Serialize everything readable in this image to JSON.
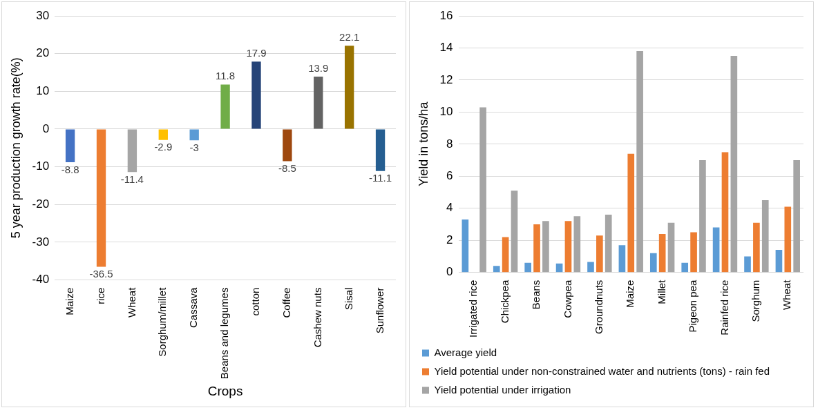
{
  "chart_data": [
    {
      "type": "bar",
      "xlabel": "Crops",
      "ylabel": "5 year production growth rate(%)",
      "categories": [
        "Maize",
        "rice",
        "Wheat",
        "Sorghum/millet",
        "Cassava",
        "Beans and legumes",
        "cotton",
        "Coffee",
        "Cashew nuts",
        "Sisal",
        "Sunflower"
      ],
      "values": [
        -8.8,
        -36.5,
        -11.4,
        -2.9,
        -3,
        11.8,
        17.9,
        -8.5,
        13.9,
        22.1,
        -11.1
      ],
      "colors": [
        "#4472c4",
        "#ed7d31",
        "#a5a5a5",
        "#ffc000",
        "#5b9bd5",
        "#70ad47",
        "#264478",
        "#9e480e",
        "#636363",
        "#997300",
        "#255e91"
      ],
      "ylim": [
        -40,
        30
      ],
      "yticks": [
        -40,
        -30,
        -20,
        -10,
        0,
        10,
        20,
        30
      ],
      "grid": "y",
      "data_labels": true,
      "legend": false
    },
    {
      "type": "bar",
      "ylabel": "Yield in tons/ha",
      "categories": [
        "Irrigated rice",
        "Chickpea",
        "Beans",
        "Cowpea",
        "Groundnuts",
        "Maize",
        "Millet",
        "Pigeon pea",
        "Rainfed rice",
        "Sorghum",
        "Wheat"
      ],
      "series": [
        {
          "name": "Average yield",
          "color": "#5b9bd5",
          "values": [
            3.3,
            0.4,
            0.6,
            0.55,
            0.65,
            1.7,
            1.2,
            0.6,
            2.8,
            1.0,
            1.4
          ]
        },
        {
          "name": "Yield potential under non-constrained water and nutrients (tons) - rain fed",
          "color": "#ed7d31",
          "values": [
            null,
            2.2,
            3.0,
            3.2,
            2.3,
            7.4,
            2.4,
            2.5,
            7.5,
            3.1,
            4.1
          ]
        },
        {
          "name": "Yield potential under irrigation",
          "color": "#a5a5a5",
          "values": [
            10.3,
            5.1,
            3.2,
            3.5,
            3.6,
            13.8,
            3.1,
            7.0,
            13.5,
            4.5,
            7.0
          ]
        }
      ],
      "ylim": [
        0,
        16
      ],
      "yticks": [
        0,
        2,
        4,
        6,
        8,
        10,
        12,
        14,
        16
      ],
      "grid": "y",
      "legend": "bottom"
    }
  ]
}
